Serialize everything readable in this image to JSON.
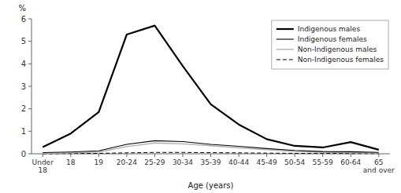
{
  "chart_data": {
    "type": "line",
    "categories": [
      "Under\n18",
      "18",
      "19",
      "20-24",
      "25-29",
      "30-34",
      "35-39",
      "40-44",
      "45-49",
      "50-54",
      "55-59",
      "60-64",
      "65\nand over"
    ],
    "series": [
      {
        "name": "Indigenous males",
        "color": "black",
        "line_style": "solid",
        "values": [
          0.3,
          0.9,
          1.85,
          5.3,
          5.7,
          3.9,
          2.2,
          1.3,
          0.65,
          0.35,
          0.28,
          0.52,
          0.18
        ]
      },
      {
        "name": "Indigenous females",
        "color": "black",
        "line_style": "solid",
        "values": [
          0.05,
          0.08,
          0.13,
          0.42,
          0.58,
          0.54,
          0.42,
          0.33,
          0.23,
          0.15,
          0.1,
          0.09,
          0.06
        ]
      },
      {
        "name": "Non-Indigenous males",
        "color": "#b0b0b0",
        "line_style": "solid",
        "values": [
          0.02,
          0.04,
          0.08,
          0.32,
          0.48,
          0.44,
          0.36,
          0.26,
          0.18,
          0.1,
          0.07,
          0.05,
          0.03
        ]
      },
      {
        "name": "Non-Indigenous females",
        "color": "black",
        "line_style": "dashed",
        "values": [
          0.0,
          0.01,
          0.02,
          0.04,
          0.06,
          0.06,
          0.05,
          0.04,
          0.03,
          0.02,
          0.02,
          0.01,
          0.01
        ]
      }
    ],
    "xlabel": "Age (years)",
    "ylabel": "%",
    "ylim": [
      0,
      6
    ],
    "yticks": [
      0,
      1,
      2,
      3,
      4,
      5,
      6
    ],
    "grid": false,
    "legend": "upper right"
  }
}
